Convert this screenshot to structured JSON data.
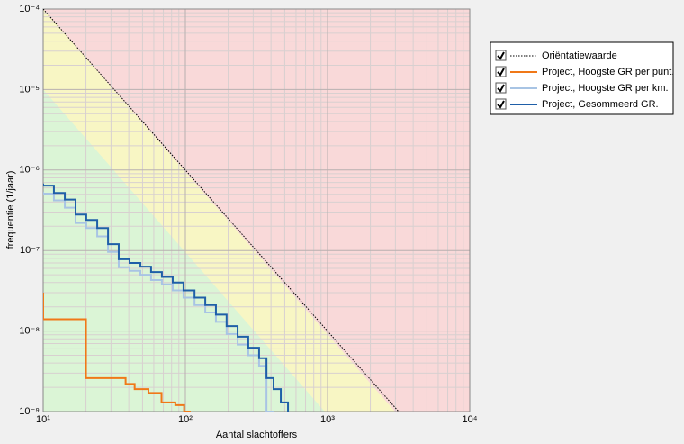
{
  "chart_data": {
    "type": "line",
    "xlabel": "Aantal slachtoffers",
    "ylabel": "frequentie (1/jaar)",
    "xlog": true,
    "ylog": true,
    "grid": true,
    "legend": "top-right",
    "xlim": [
      10,
      10000
    ],
    "ylim": [
      1e-09,
      0.0001
    ],
    "xticks": [
      {
        "value": 10,
        "label": "10¹"
      },
      {
        "value": 100,
        "label": "10²"
      },
      {
        "value": 1000,
        "label": "10³"
      },
      {
        "value": 10000,
        "label": "10⁴"
      }
    ],
    "yticks": [
      {
        "value": 1e-09,
        "label": "10⁻⁹"
      },
      {
        "value": 1e-08,
        "label": "10⁻⁸"
      },
      {
        "value": 1e-07,
        "label": "10⁻⁷"
      },
      {
        "value": 1e-06,
        "label": "10⁻⁶"
      },
      {
        "value": 1e-05,
        "label": "10⁻⁵"
      },
      {
        "value": 0.0001,
        "label": "10⁻⁴"
      }
    ],
    "series": [
      {
        "name": "Oriëntatiewaarde",
        "color": "#000000",
        "style": "dotted",
        "step": false,
        "x": [
          10,
          3162
        ],
        "values": [
          0.0001,
          1e-09
        ]
      },
      {
        "name": "Project, Hoogste GR per punt.",
        "color": "#f07818",
        "style": "solid",
        "step": true,
        "x": [
          10,
          20,
          38,
          44,
          55,
          68,
          85,
          98,
          109
        ],
        "values": [
          3e-08,
          1.4e-08,
          2.6e-09,
          2.2e-09,
          1.9e-09,
          1.7e-09,
          1.3e-09,
          1.2e-09,
          1e-09
        ]
      },
      {
        "name": "Project, Hoogste GR per km.",
        "color": "#a8c4e4",
        "style": "solid",
        "step": true,
        "x": [
          10,
          11.9,
          14.2,
          16.9,
          20.1,
          24,
          28.6,
          34,
          40.5,
          48.3,
          57.4,
          68.4,
          81.5,
          97,
          116,
          138,
          164,
          195,
          233,
          277,
          330,
          372,
          417
        ],
        "values": [
          5.4e-07,
          5.1e-07,
          4.2e-07,
          3.4e-07,
          2.2e-07,
          1.9e-07,
          1.5e-07,
          9.6e-08,
          6.2e-08,
          5.6e-08,
          5e-08,
          4.3e-08,
          3.8e-08,
          3.2e-08,
          2.6e-08,
          2.1e-08,
          1.7e-08,
          1.3e-08,
          9.2e-09,
          6.8e-09,
          5e-09,
          3.7e-09,
          1e-09
        ]
      },
      {
        "name": "Project, Gesommeerd GR.",
        "color": "#1f5fa8",
        "style": "solid",
        "step": true,
        "x": [
          10,
          11.9,
          14.2,
          16.9,
          20.1,
          24,
          28.6,
          34,
          40.5,
          48.3,
          57.4,
          68.4,
          81.5,
          97,
          116,
          138,
          164,
          195,
          233,
          277,
          330,
          372,
          417,
          469,
          527
        ],
        "values": [
          6.8e-07,
          6.4e-07,
          5.2e-07,
          4.3e-07,
          2.8e-07,
          2.4e-07,
          1.9e-07,
          1.2e-07,
          7.8e-08,
          7e-08,
          6.3e-08,
          5.4e-08,
          4.7e-08,
          4e-08,
          3.2e-08,
          2.6e-08,
          2.1e-08,
          1.6e-08,
          1.15e-08,
          8.5e-09,
          6.2e-09,
          4.6e-09,
          2.6e-09,
          1.9e-09,
          1.3e-09
        ]
      }
    ]
  }
}
